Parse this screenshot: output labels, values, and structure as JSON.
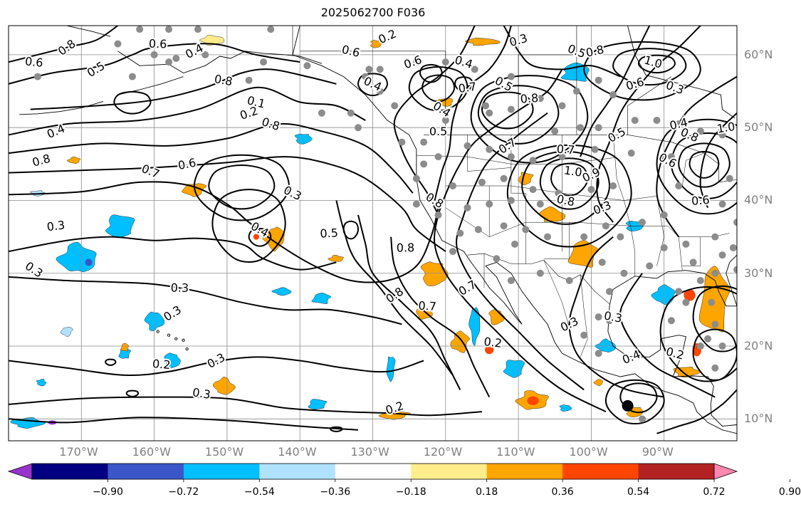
{
  "title": "2025062700 F036",
  "map": {
    "projection": "equirectangular",
    "lon_range": [
      -180,
      -80
    ],
    "lat_range": [
      7,
      64
    ],
    "lat_labels": [
      {
        "lat": 60,
        "text": "60°N"
      },
      {
        "lat": 50,
        "text": "50°N"
      },
      {
        "lat": 40,
        "text": "40°N"
      },
      {
        "lat": 30,
        "text": "30°N"
      },
      {
        "lat": 20,
        "text": "20°N"
      },
      {
        "lat": 10,
        "text": "10°N"
      }
    ],
    "lon_labels": [
      {
        "lon": -170,
        "text": "170°W"
      },
      {
        "lon": -160,
        "text": "160°W"
      },
      {
        "lon": -150,
        "text": "150°W"
      },
      {
        "lon": -140,
        "text": "140°W"
      },
      {
        "lon": -130,
        "text": "130°W"
      },
      {
        "lon": -120,
        "text": "120°W"
      },
      {
        "lon": -110,
        "text": "110°W"
      },
      {
        "lon": -100,
        "text": "100°W"
      },
      {
        "lon": -90,
        "text": "90°W"
      }
    ],
    "contour_labels": [
      {
        "lon": -172,
        "lat": 61,
        "text": "0.8"
      },
      {
        "lon": -159.5,
        "lat": 61.5,
        "text": "0.6"
      },
      {
        "lon": -168,
        "lat": 58,
        "text": "0.5"
      },
      {
        "lon": -176.5,
        "lat": 59,
        "text": "0.6"
      },
      {
        "lon": -154.5,
        "lat": 60.5,
        "text": "0.4"
      },
      {
        "lon": -150.5,
        "lat": 56.5,
        "text": "0.8"
      },
      {
        "lon": -173.5,
        "lat": 49.5,
        "text": "0.4"
      },
      {
        "lon": -146,
        "lat": 53.5,
        "text": "0.1"
      },
      {
        "lon": -147,
        "lat": 52,
        "text": "0.2"
      },
      {
        "lon": -144,
        "lat": 50.5,
        "text": "0.8"
      },
      {
        "lon": -175.5,
        "lat": 45.5,
        "text": "0.8"
      },
      {
        "lon": -160.5,
        "lat": 44,
        "text": "0.7"
      },
      {
        "lon": -155.5,
        "lat": 45,
        "text": "0.6"
      },
      {
        "lon": -141,
        "lat": 41,
        "text": "0.3"
      },
      {
        "lon": -173.5,
        "lat": 36.5,
        "text": "0.3"
      },
      {
        "lon": -145.5,
        "lat": 36,
        "text": "0.4"
      },
      {
        "lon": -136,
        "lat": 35.5,
        "text": "0.5"
      },
      {
        "lon": -176.5,
        "lat": 30.5,
        "text": "0.3"
      },
      {
        "lon": -156.5,
        "lat": 28,
        "text": "0.3"
      },
      {
        "lon": -157.5,
        "lat": 24.5,
        "text": "0.3"
      },
      {
        "lon": -159,
        "lat": 17.5,
        "text": "0.2"
      },
      {
        "lon": -151.5,
        "lat": 18,
        "text": "0.3"
      },
      {
        "lon": -153.5,
        "lat": 13.5,
        "text": "0.3"
      },
      {
        "lon": -128,
        "lat": 62.5,
        "text": "0.2"
      },
      {
        "lon": -133,
        "lat": 60.5,
        "text": "0.6"
      },
      {
        "lon": -124.5,
        "lat": 59,
        "text": "0.6"
      },
      {
        "lon": -117.5,
        "lat": 59,
        "text": "0.4"
      },
      {
        "lon": -110,
        "lat": 62,
        "text": "0.3"
      },
      {
        "lon": -102,
        "lat": 60.5,
        "text": "0.5"
      },
      {
        "lon": -99.5,
        "lat": 60.5,
        "text": "0.8"
      },
      {
        "lon": -130,
        "lat": 56,
        "text": "0.4"
      },
      {
        "lon": -117,
        "lat": 55.5,
        "text": "0.7"
      },
      {
        "lon": -112,
        "lat": 56,
        "text": "0.5"
      },
      {
        "lon": -108.5,
        "lat": 54,
        "text": "0.8"
      },
      {
        "lon": -120.5,
        "lat": 52.5,
        "text": "0.4"
      },
      {
        "lon": -121,
        "lat": 49.5,
        "text": "0.5"
      },
      {
        "lon": -111.5,
        "lat": 47.5,
        "text": "0.7"
      },
      {
        "lon": -103.5,
        "lat": 47,
        "text": "0.7"
      },
      {
        "lon": -96.5,
        "lat": 49,
        "text": "0.5"
      },
      {
        "lon": -102.5,
        "lat": 44,
        "text": "1.0"
      },
      {
        "lon": -100,
        "lat": 43.5,
        "text": "0.9"
      },
      {
        "lon": -103.5,
        "lat": 40,
        "text": "0.8"
      },
      {
        "lon": -98.5,
        "lat": 39,
        "text": "0.3"
      },
      {
        "lon": -91.5,
        "lat": 59,
        "text": "1.0"
      },
      {
        "lon": -94,
        "lat": 56,
        "text": "0.6"
      },
      {
        "lon": -88.5,
        "lat": 55.5,
        "text": "0.3"
      },
      {
        "lon": -88,
        "lat": 50.5,
        "text": "0.4"
      },
      {
        "lon": -86.5,
        "lat": 49,
        "text": "0.8"
      },
      {
        "lon": -81.5,
        "lat": 50,
        "text": "1.0"
      },
      {
        "lon": -89.5,
        "lat": 45.5,
        "text": "0.6"
      },
      {
        "lon": -85,
        "lat": 40,
        "text": "0.6"
      },
      {
        "lon": -121.5,
        "lat": 40,
        "text": "0.8"
      },
      {
        "lon": -125.5,
        "lat": 33.5,
        "text": "0.8"
      },
      {
        "lon": -127,
        "lat": 27,
        "text": "0.8"
      },
      {
        "lon": -122.5,
        "lat": 25.5,
        "text": "0.7"
      },
      {
        "lon": -117,
        "lat": 28,
        "text": "0.7"
      },
      {
        "lon": -113.5,
        "lat": 20.5,
        "text": "0.2"
      },
      {
        "lon": -103,
        "lat": 23,
        "text": "0.3"
      },
      {
        "lon": -97,
        "lat": 24,
        "text": "0.3"
      },
      {
        "lon": -94.5,
        "lat": 18.5,
        "text": "0.4"
      },
      {
        "lon": -88.5,
        "lat": 19,
        "text": "0.2"
      },
      {
        "lon": -127,
        "lat": 11.5,
        "text": "0.2"
      }
    ]
  },
  "colorbar": {
    "colors": [
      "#9932cc",
      "#000080",
      "#3a56c8",
      "#00bfff",
      "#b0e2ff",
      "#ffffff",
      "#ffec8b",
      "#ffa500",
      "#ff4500",
      "#b22222",
      "#ff88b0"
    ],
    "tick_labels": [
      "−0.90",
      "−0.72",
      "−0.54",
      "−0.36",
      "−0.18",
      "0.18",
      "0.36",
      "0.54",
      "0.72",
      "0.90"
    ]
  }
}
